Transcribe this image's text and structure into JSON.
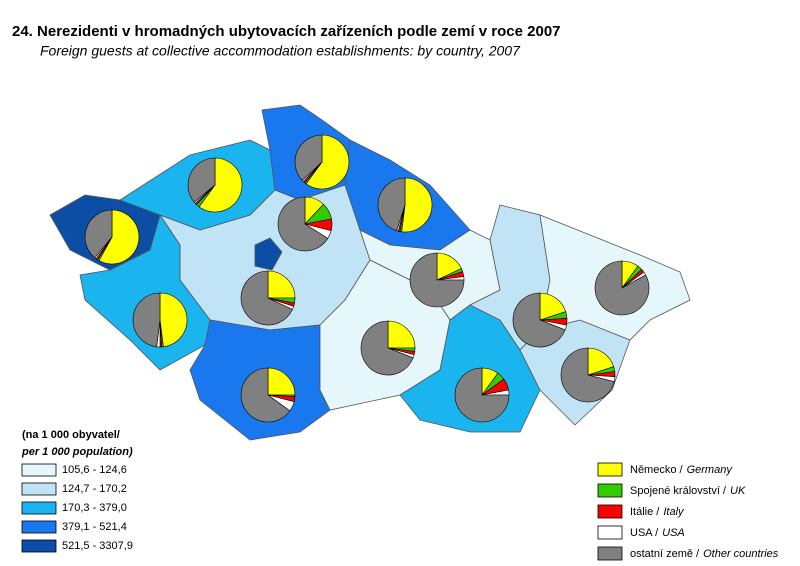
{
  "map": {
    "title": "24. Nerezidenti v hromadných ubytovacích zařízeních podle zemí v roce 2007",
    "subtitle": "Foreign guests at collective accommodation establishments: by country, 2007",
    "legend_density": {
      "title_cs": "(na 1 000 obyvatel/",
      "title_en": "per 1 000 population)",
      "classes": [
        {
          "label": "105,6 -  124,6",
          "color": "#e6f7fb"
        },
        {
          "label": "124,7 -  170,2",
          "color": "#c0e4f6"
        },
        {
          "label": "170,3 -  379,0",
          "color": "#1ab4ee"
        },
        {
          "label": "379,1 -  521,4",
          "color": "#1a78ee"
        },
        {
          "label": "521,5 - 3307,9",
          "color": "#0c4ea6"
        }
      ]
    },
    "legend_pie": {
      "series": [
        {
          "name_cs": "Německo /",
          "name_en": "Germany",
          "color": "#ffff00"
        },
        {
          "name_cs": "Spojené království /",
          "name_en": "UK",
          "color": "#33cc00"
        },
        {
          "name_cs": "Itálie /",
          "name_en": "Italy",
          "color": "#ff0000"
        },
        {
          "name_cs": "USA /",
          "name_en": "USA",
          "color": "#ffffff"
        },
        {
          "name_cs": "ostatní země /",
          "name_en": "Other countries",
          "color": "#808080"
        }
      ]
    },
    "regions": [
      {
        "class": 4,
        "values": [
          12,
          10,
          7,
          5,
          66
        ]
      },
      {
        "class": 1,
        "values": [
          25,
          3,
          2,
          2,
          68
        ]
      },
      {
        "class": 3,
        "values": [
          25,
          1,
          3,
          6,
          65
        ]
      },
      {
        "class": 2,
        "values": [
          48,
          1,
          1,
          2,
          48
        ]
      },
      {
        "class": 4,
        "values": [
          58,
          1,
          1,
          1,
          39
        ]
      },
      {
        "class": 2,
        "values": [
          60,
          2,
          1,
          1,
          36
        ]
      },
      {
        "class": 3,
        "values": [
          60,
          1,
          1,
          1,
          37
        ]
      },
      {
        "class": 3,
        "values": [
          52,
          1,
          1,
          1,
          45
        ]
      },
      {
        "class": 0,
        "values": [
          18,
          2,
          3,
          2,
          75
        ]
      },
      {
        "class": 0,
        "values": [
          25,
          2,
          2,
          2,
          69
        ]
      },
      {
        "class": 2,
        "values": [
          10,
          5,
          7,
          3,
          75
        ]
      },
      {
        "class": 1,
        "values": [
          20,
          4,
          4,
          3,
          69
        ]
      },
      {
        "class": 1,
        "values": [
          20,
          3,
          3,
          3,
          71
        ]
      },
      {
        "class": 0,
        "values": [
          10,
          3,
          2,
          2,
          83
        ]
      }
    ]
  }
}
